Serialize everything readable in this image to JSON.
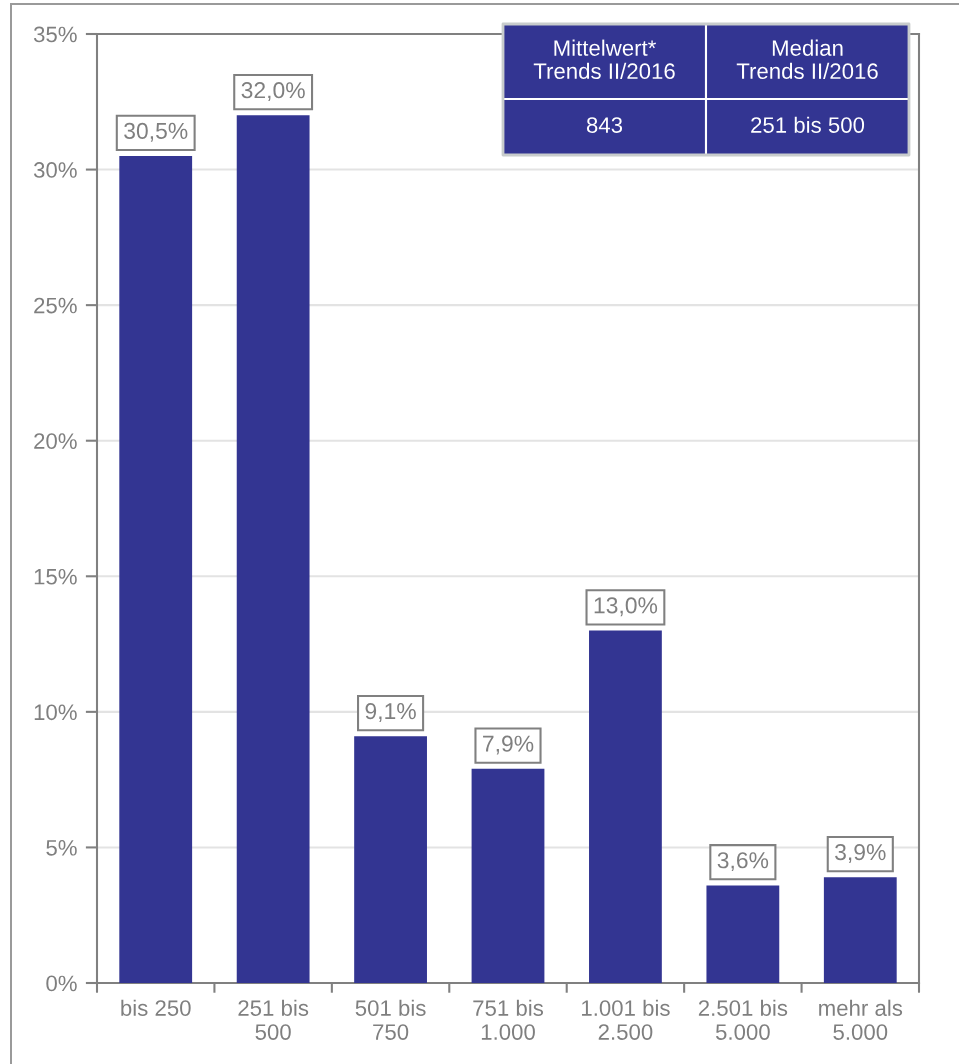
{
  "chart_data": {
    "type": "bar",
    "categories": [
      "bis 250",
      "251 bis\n500",
      "501 bis\n750",
      "751 bis\n1.000",
      "1.001 bis\n2.500",
      "2.501 bis\n5.000",
      "mehr als\n5.000"
    ],
    "values": [
      30.5,
      32.0,
      9.1,
      7.9,
      13.0,
      3.6,
      3.9
    ],
    "color": "#333592",
    "value_labels": [
      "30,5%",
      "32,0%",
      "9,1%",
      "7,9%",
      "13,0%",
      "3,6%",
      "3,9%"
    ],
    "ylim": [
      0,
      35
    ],
    "yticks": [
      {
        "value": 0,
        "label": "0%"
      },
      {
        "value": 5,
        "label": "5%"
      },
      {
        "value": 10,
        "label": "10%"
      },
      {
        "value": 15,
        "label": "15%"
      },
      {
        "value": 20,
        "label": "20%"
      },
      {
        "value": 25,
        "label": "25%"
      },
      {
        "value": 30,
        "label": "30%"
      },
      {
        "value": 35,
        "label": "35%"
      }
    ],
    "grid": "y",
    "annotations": [
      "Mittelwert*\nTrends II/2016",
      "Median\nTrends II/2016",
      "843",
      "251 bis 500"
    ]
  }
}
